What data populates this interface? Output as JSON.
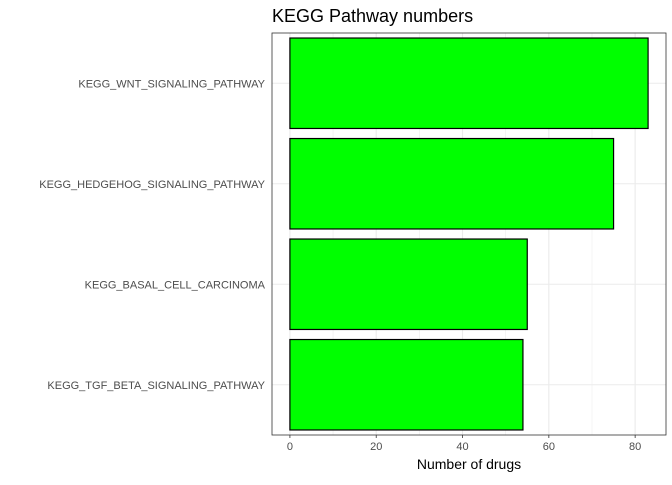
{
  "chart_data": {
    "type": "bar",
    "orientation": "horizontal",
    "title": "KEGG Pathway numbers",
    "xlabel": "Number of drugs",
    "ylabel": "",
    "categories": [
      "KEGG_WNT_SIGNALING_PATHWAY",
      "KEGG_HEDGEHOG_SIGNALING_PATHWAY",
      "KEGG_BASAL_CELL_CARCINOMA",
      "KEGG_TGF_BETA_SIGNALING_PATHWAY"
    ],
    "values": [
      83,
      75,
      55,
      54
    ],
    "xlim": [
      -4.15,
      87.15
    ],
    "xticks": [
      0,
      20,
      40,
      60,
      80
    ],
    "grid": true,
    "legend": "none",
    "bar_color": "#00FF00",
    "bar_outline_color": "#000000"
  }
}
